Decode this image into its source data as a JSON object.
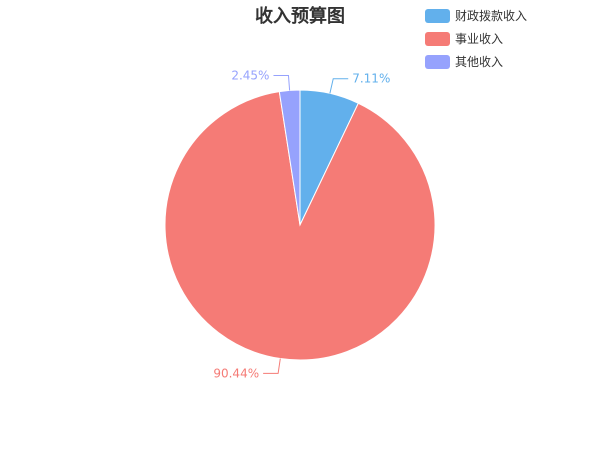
{
  "chart_data": {
    "type": "pie",
    "title": "收入预算图",
    "categories": [
      "财政拨款收入",
      "事业收入",
      "其他收入"
    ],
    "values": [
      7.11,
      90.44,
      2.45
    ],
    "value_labels": [
      "7.11%",
      "90.44%",
      "2.45%"
    ],
    "colors": [
      "#62b0ec",
      "#f57b76",
      "#96a2fd"
    ],
    "legend_position": "top-right",
    "grid": false
  }
}
